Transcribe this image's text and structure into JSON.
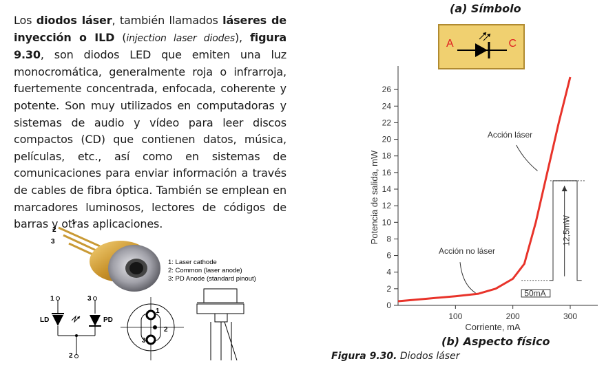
{
  "paragraph": {
    "p1": "Los ",
    "b1": "diodos láser",
    "p2": ", también llamados ",
    "b2": "láseres de inyección o ILD",
    "p3": " (",
    "i1": "injection laser diodes",
    "p4": "), ",
    "b3": "figura 9.30",
    "p5": ", son diodos LED que emiten una luz monocromática, generalmente roja o infrarroja, fuertemente concentrada, enfocada, coherente y potente. Son muy utilizados en computadoras y sistemas de audio y vídeo para leer discos compactos (CD) que contienen datos, música, películas, etc., así como en sistemas de comunicaciones para enviar información a través de cables de fibra óptica. También se emplean en marcadores luminosos, lectores de códigos de barras y otras aplicaciones."
  },
  "pins": {
    "l1": "1: Laser cathode",
    "l2": "2: Common (laser anode)",
    "l3": "3: PD Anode (standard pinout)"
  },
  "schematic": {
    "n1": "1",
    "n2": "2",
    "n3": "3",
    "ld": "LD",
    "pd": "PD",
    "base1": "1",
    "base2": "2",
    "base3": "3",
    "top1": "1",
    "top3": "3",
    "bot2": "2"
  },
  "symbol": {
    "title": "(a) Símbolo",
    "anode": "A",
    "cathode": "C"
  },
  "chart_data": {
    "type": "line",
    "xlabel": "Corriente, mA",
    "ylabel": "Potencia de salida, mW",
    "xticks": [
      100,
      200,
      300
    ],
    "yticks": [
      0,
      2,
      4,
      6,
      8,
      10,
      12,
      14,
      16,
      18,
      20,
      22,
      24,
      26
    ],
    "xlim": [
      0,
      330
    ],
    "ylim": [
      0,
      28
    ],
    "series": [
      {
        "x": [
          0,
          50,
          100,
          140,
          170,
          200,
          220,
          240,
          260,
          280,
          300
        ],
        "y": [
          0.5,
          0.8,
          1.1,
          1.4,
          2.0,
          3.2,
          5.0,
          10.0,
          16.0,
          22.0,
          27.5
        ]
      }
    ],
    "annotations": {
      "laser": "Acción láser",
      "no_laser": "Acción no láser",
      "pulse_height": "12,5mW",
      "pulse_width": "50mA"
    },
    "color": "#e8332a"
  },
  "titles": {
    "b": "(b) Aspecto físico"
  },
  "caption": {
    "bold": "Figura 9.30.",
    "text": " Diodos láser"
  }
}
